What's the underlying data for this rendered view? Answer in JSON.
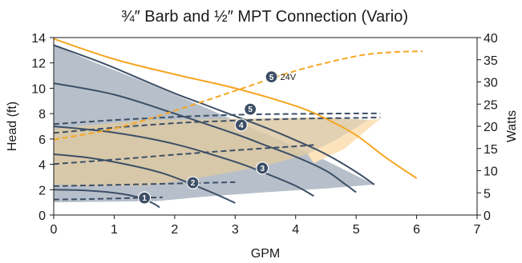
{
  "chart_data": {
    "type": "line",
    "title": "¾″ Barb and ½″ MPT Connection (Vario)",
    "xlabel": "GPM",
    "ylabel": "Head (ft)",
    "y2label": "Watts",
    "xlim": [
      0,
      7
    ],
    "ylim": [
      0,
      14
    ],
    "y2lim": [
      0,
      40
    ],
    "xticks": [
      "0",
      "1",
      "2",
      "3",
      "4",
      "5",
      "6",
      "7"
    ],
    "yticks": [
      "0",
      "2",
      "4",
      "6",
      "8",
      "10",
      "12",
      "14"
    ],
    "y2ticks": [
      "0",
      "5",
      "10",
      "15",
      "20",
      "25",
      "30",
      "35",
      "40"
    ],
    "grid": false,
    "colors": {
      "curve": "#3d4f66",
      "gray_region": "#b7c0ca",
      "tan_region": "#ddc9a4",
      "cream_region": "#fde3bc",
      "orange": "#f5a623",
      "axis": "#1a1a1a"
    },
    "regions": {
      "gray": [
        [
          0,
          13.4
        ],
        [
          0.7,
          12
        ],
        [
          1.5,
          10.5
        ],
        [
          2.5,
          8.5
        ],
        [
          3.5,
          6.4
        ],
        [
          4.5,
          4.3
        ],
        [
          5.3,
          2.4
        ],
        [
          4.5,
          2.1
        ],
        [
          3.5,
          1.8
        ],
        [
          2.5,
          1.45
        ],
        [
          1.7,
          1.1
        ],
        [
          0,
          1.0
        ]
      ],
      "tan": [
        [
          0,
          2.4
        ],
        [
          0,
          6.8
        ],
        [
          1.5,
          7.5
        ],
        [
          3,
          7.6
        ],
        [
          4.5,
          7.7
        ],
        [
          5.2,
          7.5
        ],
        [
          4.7,
          6.0
        ],
        [
          4.2,
          4.8
        ],
        [
          3.5,
          3.9
        ],
        [
          2.5,
          3.0
        ],
        [
          1.5,
          2.3
        ],
        [
          0.5,
          2.3
        ]
      ],
      "cream": [
        [
          4.2,
          4.8
        ],
        [
          4.7,
          6.0
        ],
        [
          5.2,
          7.5
        ],
        [
          5.4,
          7.6
        ],
        [
          4.8,
          5.2
        ],
        [
          4.3,
          4.1
        ]
      ]
    },
    "head_curves": [
      {
        "speed": 1,
        "points": [
          [
            0,
            2.0
          ],
          [
            0.5,
            1.95
          ],
          [
            1.0,
            1.75
          ],
          [
            1.4,
            1.4
          ],
          [
            1.65,
            0.9
          ],
          [
            1.75,
            0.6
          ]
        ]
      },
      {
        "speed": 2,
        "points": [
          [
            0,
            4.8
          ],
          [
            0.6,
            4.5
          ],
          [
            1.2,
            4.0
          ],
          [
            1.8,
            3.3
          ],
          [
            2.3,
            2.4
          ],
          [
            2.7,
            1.6
          ],
          [
            3.0,
            0.95
          ]
        ]
      },
      {
        "speed": 3,
        "points": [
          [
            0,
            7.0
          ],
          [
            1.0,
            6.5
          ],
          [
            2.0,
            5.6
          ],
          [
            3.0,
            4.2
          ],
          [
            3.5,
            3.3
          ],
          [
            4.0,
            2.3
          ],
          [
            4.3,
            1.5
          ]
        ]
      },
      {
        "speed": 4,
        "points": [
          [
            0,
            10.4
          ],
          [
            1.0,
            9.5
          ],
          [
            2.0,
            8.0
          ],
          [
            3.0,
            6.4
          ],
          [
            3.5,
            5.5
          ],
          [
            4.0,
            4.6
          ],
          [
            4.5,
            3.5
          ],
          [
            4.8,
            2.5
          ],
          [
            5.0,
            1.8
          ]
        ]
      },
      {
        "speed": 5,
        "points": [
          [
            0,
            13.4
          ],
          [
            0.8,
            12.0
          ],
          [
            1.5,
            10.6
          ],
          [
            2.0,
            9.6
          ],
          [
            2.5,
            8.7
          ],
          [
            3.0,
            7.8
          ],
          [
            3.5,
            6.9
          ],
          [
            4.0,
            5.9
          ],
          [
            4.5,
            4.8
          ],
          [
            5.0,
            3.4
          ],
          [
            5.3,
            2.4
          ]
        ]
      }
    ],
    "watt_curves": [
      {
        "speed": 1,
        "points": [
          [
            0,
            3.5
          ],
          [
            0.6,
            3.6
          ],
          [
            1.2,
            3.8
          ],
          [
            1.8,
            4.0
          ]
        ]
      },
      {
        "speed": 2,
        "points": [
          [
            0,
            6.5
          ],
          [
            1.0,
            6.8
          ],
          [
            2.0,
            7.1
          ],
          [
            3.0,
            7.4
          ]
        ]
      },
      {
        "speed": 3,
        "points": [
          [
            0,
            11.5
          ],
          [
            1.0,
            12.5
          ],
          [
            2.0,
            13.6
          ],
          [
            3.0,
            14.6
          ],
          [
            4.0,
            15.5
          ],
          [
            4.3,
            15.8
          ]
        ]
      },
      {
        "speed": 4,
        "points": [
          [
            0,
            18.5
          ],
          [
            1.0,
            19.7
          ],
          [
            2.0,
            20.7
          ],
          [
            3.0,
            21.3
          ],
          [
            4.0,
            21.7
          ],
          [
            5.0,
            21.9
          ],
          [
            5.4,
            22.0
          ]
        ]
      },
      {
        "speed": 5,
        "points": [
          [
            0,
            20.5
          ],
          [
            1.0,
            21.4
          ],
          [
            2.0,
            22.1
          ],
          [
            3.0,
            22.6
          ],
          [
            4.0,
            22.8
          ],
          [
            5.0,
            22.9
          ],
          [
            5.4,
            22.9
          ]
        ]
      }
    ],
    "orange_head": {
      "points": [
        [
          0,
          13.9
        ],
        [
          1.0,
          12.3
        ],
        [
          2.0,
          11.1
        ],
        [
          3.0,
          10.0
        ],
        [
          4.0,
          8.6
        ],
        [
          4.5,
          7.6
        ],
        [
          5.0,
          6.3
        ],
        [
          5.5,
          4.5
        ],
        [
          6.0,
          2.9
        ]
      ]
    },
    "orange_watts": {
      "points": [
        [
          0,
          17.0
        ],
        [
          1.0,
          19.5
        ],
        [
          2.0,
          23.5
        ],
        [
          3.0,
          28.0
        ],
        [
          4.0,
          32.5
        ],
        [
          5.0,
          35.8
        ],
        [
          5.6,
          36.7
        ],
        [
          6.1,
          36.9
        ]
      ]
    },
    "badges": [
      {
        "label": "1",
        "x": 1.5,
        "y": 1.35
      },
      {
        "label": "2",
        "x": 2.3,
        "y": 2.55
      },
      {
        "label": "3",
        "x": 3.45,
        "y": 3.7
      },
      {
        "label": "4",
        "x": 3.1,
        "y": 7.1
      },
      {
        "label": "5",
        "x": 3.25,
        "y": 8.35
      },
      {
        "label": "5",
        "x": 3.6,
        "y": 10.9,
        "note": "24V"
      }
    ]
  }
}
